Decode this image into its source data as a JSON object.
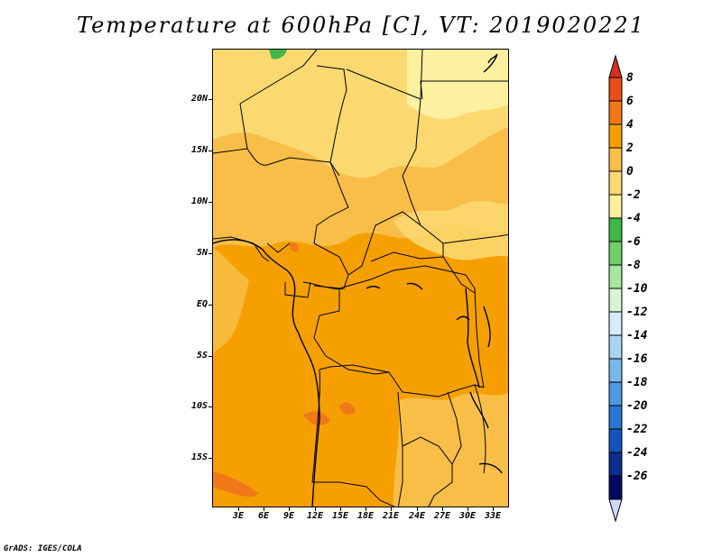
{
  "title": "Temperature at 600hPa [C], VT: 2019020221",
  "footer": "GrADS: IGES/COLA",
  "map": {
    "lat_labels": [
      "20N",
      "15N",
      "10N",
      "5N",
      "EQ",
      "5S",
      "10S",
      "15S"
    ],
    "lon_labels": [
      "3E",
      "6E",
      "9E",
      "12E",
      "15E",
      "18E",
      "21E",
      "24E",
      "27E",
      "30E",
      "33E"
    ]
  },
  "legend": {
    "labels": [
      "8",
      "6",
      "4",
      "2",
      "0",
      "-2",
      "-4",
      "-6",
      "-8",
      "-10",
      "-12",
      "-14",
      "-16",
      "-18",
      "-20",
      "-22",
      "-24",
      "-26"
    ],
    "colors": [
      "#D7301F",
      "#E8501A",
      "#F07818",
      "#F5A000",
      "#F8BE48",
      "#FCD870",
      "#FDF0A0",
      "#3FB848",
      "#6FD06A",
      "#A6E6A0",
      "#D8F4D4",
      "#D6ECF8",
      "#A8D4F2",
      "#7AB8EC",
      "#4E98E2",
      "#2A76D4",
      "#1454BC",
      "#0A2E8E",
      "#000A66",
      "#D4D8F8"
    ]
  }
}
